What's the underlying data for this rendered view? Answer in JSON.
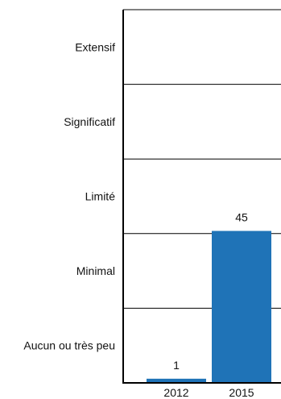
{
  "chart_data": {
    "type": "bar",
    "title": "",
    "xlabel": "",
    "ylabel": "",
    "categories": [
      "2012",
      "2015"
    ],
    "values": [
      1,
      45
    ],
    "data_labels": [
      "1",
      "45"
    ],
    "ylim": [
      0,
      5
    ],
    "y_levels": [
      "Aucun ou très peu",
      "Minimal",
      "Limité",
      "Significatif",
      "Extensif"
    ],
    "grid": true,
    "legend": "none",
    "bar_color": "#1f73b7",
    "grid_color": "#000000"
  }
}
